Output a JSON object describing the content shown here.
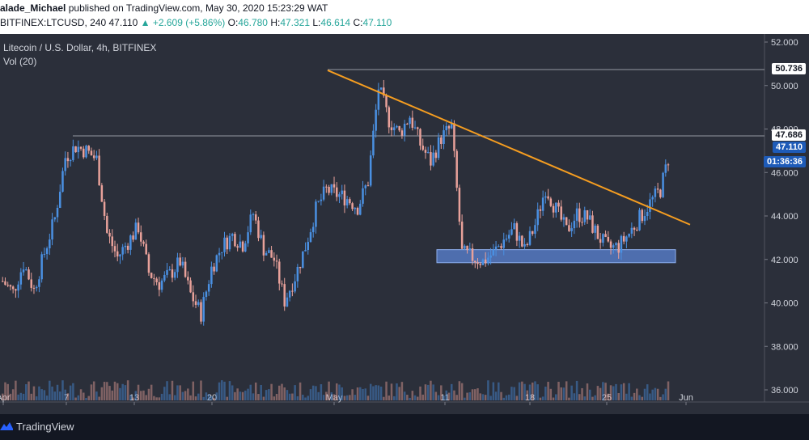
{
  "header": {
    "user": "alade_Michael",
    "published": "published on TradingView.com, May 30, 2020 15:23:29 WAT",
    "symbol_interval": "BITFINEX:LTCUSD, 240",
    "last": "47.110",
    "change": "▲ +2.609 (+5.86%)",
    "o_label": "O:",
    "o_value": "46.780",
    "h_label": "H:",
    "h_value": "47.321",
    "l_label": "L:",
    "l_value": "46.614",
    "c_label": "C:",
    "c_value": "47.110"
  },
  "legend": {
    "title": "Litecoin / U.S. Dollar, 4h, BITFINEX",
    "volume": "Vol (20)"
  },
  "price_tags": {
    "high_line": "50.736",
    "level_line": "47.686",
    "last_price": "47.110",
    "countdown": "01:36:36"
  },
  "footer": {
    "brand": "TradingView"
  },
  "colors": {
    "background": "#2b2f3a",
    "up_candle": "#4a90e2",
    "down_candle": "#e8a19a",
    "trendline": "#f59d20",
    "support_zone": "#5b84d6",
    "last_price_tag": "#1e5bb8"
  },
  "chart_data": {
    "type": "candlestick",
    "y_axis": {
      "min": 36,
      "max": 52,
      "ticks": [
        "36.000",
        "38.000",
        "40.000",
        "42.000",
        "44.000",
        "46.000",
        "48.000",
        "50.000",
        "52.000"
      ]
    },
    "x_axis": {
      "labels": [
        "Apr",
        "7",
        "13",
        "20",
        "May",
        "11",
        "18",
        "25",
        "Jun"
      ]
    },
    "close_path": [
      41.0,
      40.5,
      41.8,
      40.6,
      42.3,
      43.9,
      46.7,
      47.2,
      47.0,
      46.6,
      43.2,
      42.1,
      42.8,
      43.5,
      41.4,
      40.9,
      41.3,
      41.9,
      40.4,
      39.5,
      41.6,
      42.6,
      43.1,
      42.7,
      44.1,
      42.5,
      42.0,
      40.1,
      41.2,
      42.6,
      44.3,
      45.2,
      45.0,
      44.8,
      44.4,
      45.6,
      49.9,
      48.4,
      47.8,
      48.6,
      47.3,
      46.5,
      47.6,
      48.1,
      42.3,
      42.1,
      41.9,
      42.3,
      42.9,
      43.4,
      42.4,
      43.6,
      45.3,
      44.3,
      43.3,
      44.1,
      43.9,
      43.1,
      42.5,
      42.6,
      43.2,
      43.9,
      44.6,
      45.2,
      47.11
    ],
    "high_line": 50.736,
    "level_line": 47.686,
    "last_price": 47.11,
    "support_zone": [
      41.85,
      42.45
    ],
    "trendline": {
      "from": 50.7,
      "to": 43.6
    }
  }
}
